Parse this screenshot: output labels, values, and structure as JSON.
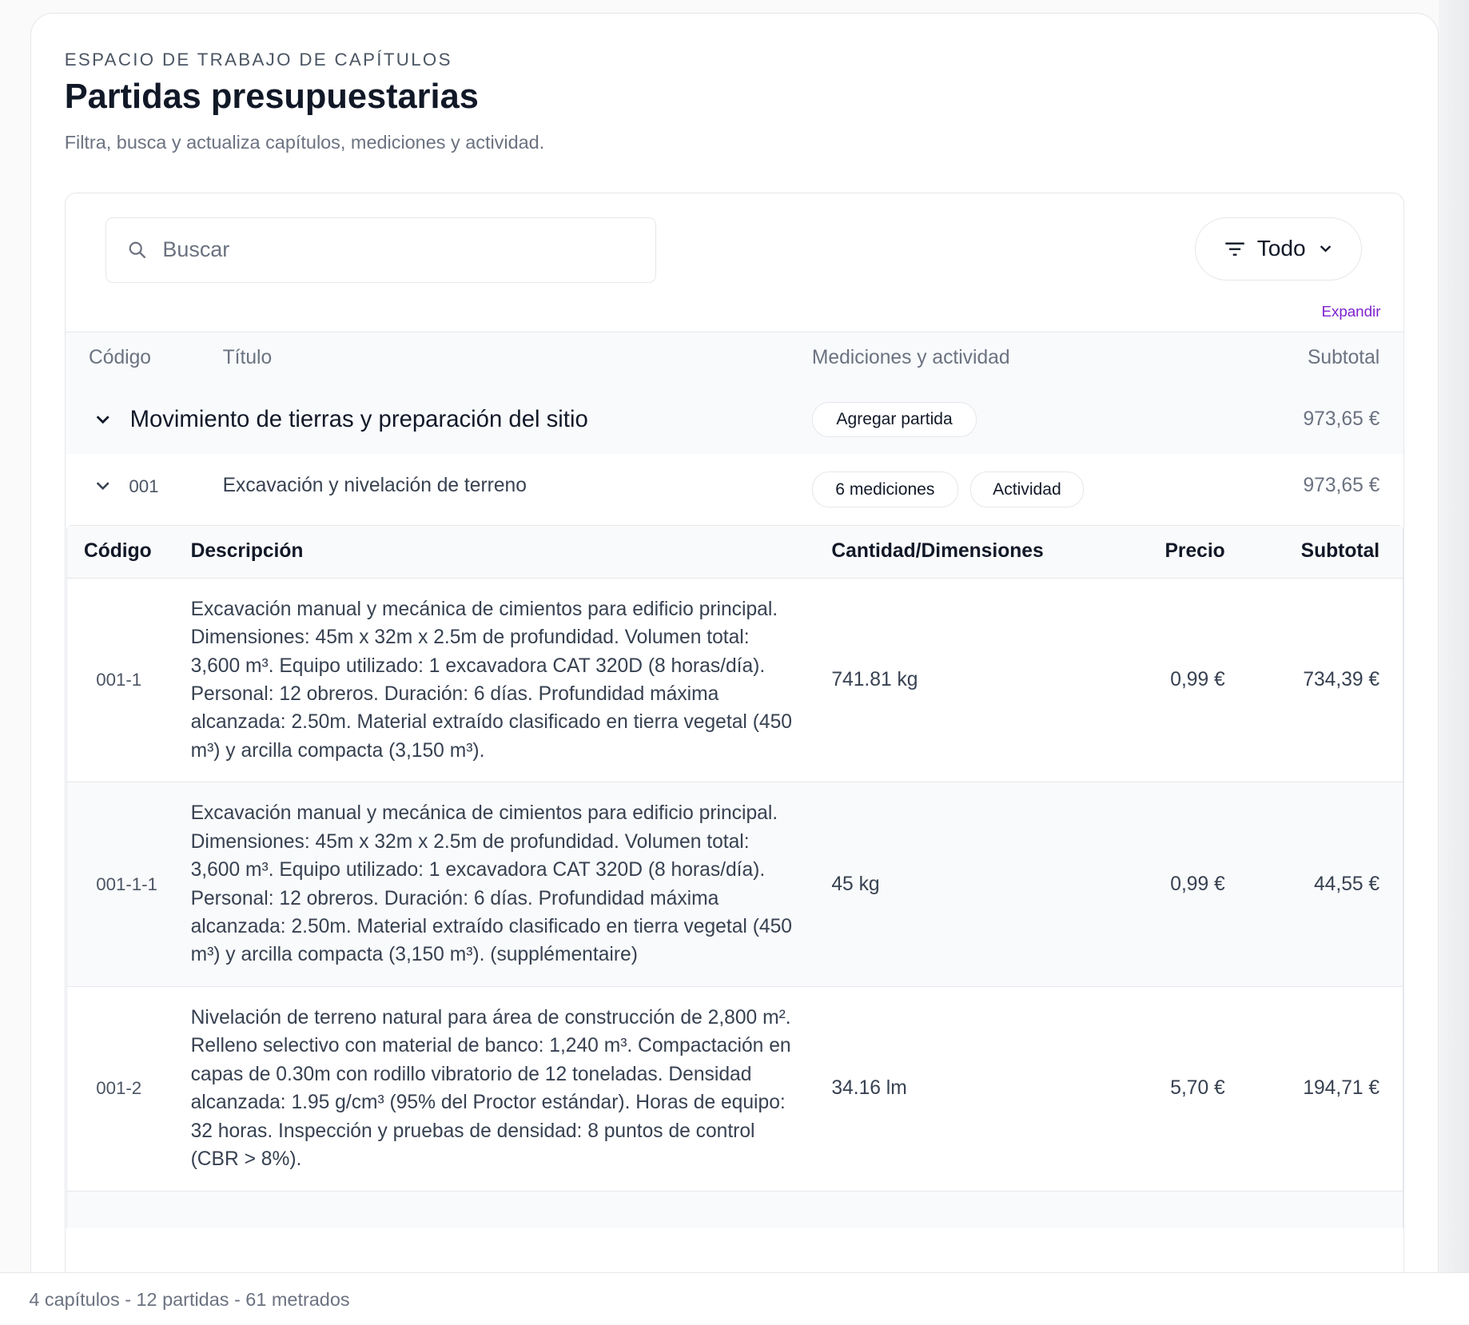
{
  "header": {
    "eyebrow": "ESPACIO DE TRABAJO DE CAPÍTULOS",
    "title": "Partidas presupuestarias",
    "subtitle": "Filtra, busca y actualiza capítulos, mediciones y actividad."
  },
  "search": {
    "placeholder": "Buscar",
    "value": ""
  },
  "filter": {
    "label": "Todo"
  },
  "expand_label": "Expandir",
  "columns": {
    "code": "Código",
    "title": "Título",
    "measures": "Mediciones y actividad",
    "subtotal": "Subtotal"
  },
  "chapter": {
    "title": "Movimiento de tierras y preparación del sitio",
    "add_label": "Agregar partida",
    "subtotal": "973,65 €"
  },
  "item": {
    "code": "001",
    "title": "Excavación y nivelación de terreno",
    "measures_label": "6 mediciones",
    "activity_label": "Actividad",
    "subtotal": "973,65 €"
  },
  "subtable": {
    "columns": {
      "code": "Código",
      "description": "Descripción",
      "quantity": "Cantidad/Dimensiones",
      "price": "Precio",
      "subtotal": "Subtotal"
    },
    "rows": [
      {
        "code": "001-1",
        "description": "Excavación manual y mecánica de cimientos para edificio principal. Dimensiones: 45m x 32m x 2.5m de profundidad. Volumen total: 3,600 m³. Equipo utilizado: 1 excavadora CAT 320D (8 horas/día). Personal: 12 obreros. Duración: 6 días. Profundidad máxima alcanzada: 2.50m. Material extraído clasificado en tierra vegetal (450 m³) y arcilla compacta (3,150 m³).",
        "quantity": "741.81 kg",
        "price": "0,99 €",
        "subtotal": "734,39 €"
      },
      {
        "code": "001-1-1",
        "description": "Excavación manual y mecánica de cimientos para edificio principal. Dimensiones: 45m x 32m x 2.5m de profundidad. Volumen total: 3,600 m³. Equipo utilizado: 1 excavadora CAT 320D (8 horas/día). Personal: 12 obreros. Duración: 6 días. Profundidad máxima alcanzada: 2.50m. Material extraído clasificado en tierra vegetal (450 m³) y arcilla compacta (3,150 m³). (supplémentaire)",
        "quantity": "45 kg",
        "price": "0,99 €",
        "subtotal": "44,55 €"
      },
      {
        "code": "001-2",
        "description": "Nivelación de terreno natural para área de construcción de 2,800 m². Relleno selectivo con material de banco: 1,240 m³. Compactación en capas de 0.30m con rodillo vibratorio de 12 toneladas. Densidad alcanzada: 1.95 g/cm³ (95% del Proctor estándar). Horas de equipo: 32 horas. Inspección y pruebas de densidad: 8 puntos de control (CBR > 8%).",
        "quantity": "34.16 lm",
        "price": "5,70 €",
        "subtotal": "194,71 €"
      }
    ]
  },
  "footer": {
    "summary": "4 capítulos - 12 partidas - 61 metrados"
  },
  "colors": {
    "accent": "#7e22ce",
    "text": "#111827",
    "muted": "#6b7280",
    "border": "#e5e7eb",
    "row_alt": "#f9fafb"
  }
}
